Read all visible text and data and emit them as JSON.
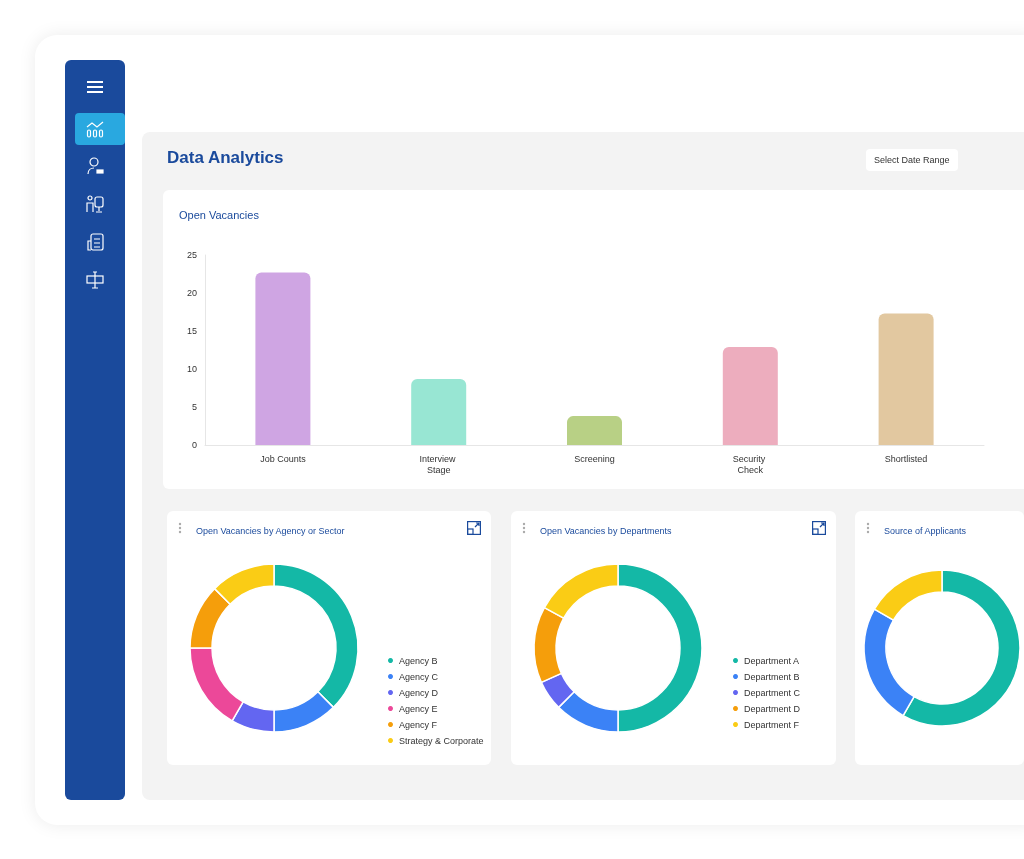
{
  "chart_data": [
    {
      "type": "other",
      "title": "Data Analytics",
      "annotations": [
        "Select Date Range"
      ]
    },
    {
      "type": "bar",
      "title": "Open Vacancies",
      "categories": [
        "Job Counts",
        "Interview Stage",
        "Screening",
        "Security Check",
        "Shortlisted"
      ],
      "values": [
        22.7,
        8.7,
        3.8,
        12.9,
        17.3
      ],
      "colors": [
        "#cfa5e3",
        "#98e6d3",
        "#b8d085",
        "#edadbe",
        "#e2c8a0"
      ],
      "ylim": [
        0,
        25
      ],
      "yticks": [
        0,
        5,
        10,
        15,
        20,
        25
      ],
      "grid": false,
      "legend": false
    },
    {
      "type": "donut",
      "title": "Open Vacancies by Agency or Sector",
      "categories": [
        "Agency B",
        "Agency C",
        "Agency D",
        "Agency E",
        "Agency F",
        "Strategy & Corporate"
      ],
      "values": [
        37.5,
        12.5,
        8.3,
        16.7,
        12.5,
        12.5
      ],
      "colors": [
        "#14b8a6",
        "#3b82f6",
        "#6366f1",
        "#ec4899",
        "#f59e0b",
        "#facc15"
      ],
      "legend": "right"
    },
    {
      "type": "donut",
      "title": "Open Vacancies by Departments",
      "categories": [
        "Department A",
        "Department B",
        "Department C",
        "Department D",
        "Department F"
      ],
      "values": [
        50,
        12.5,
        5.8,
        14.7,
        17
      ],
      "colors": [
        "#14b8a6",
        "#3b82f6",
        "#6366f1",
        "#f59e0b",
        "#facc15"
      ],
      "legend": "right"
    },
    {
      "type": "donut",
      "title": "Source of Applicants",
      "categories": [
        null,
        null,
        null
      ],
      "values": [
        58.3,
        25,
        16.7
      ],
      "colors": [
        "#14b8a6",
        "#3b82f6",
        "#facc15"
      ],
      "legend": false
    }
  ]
}
